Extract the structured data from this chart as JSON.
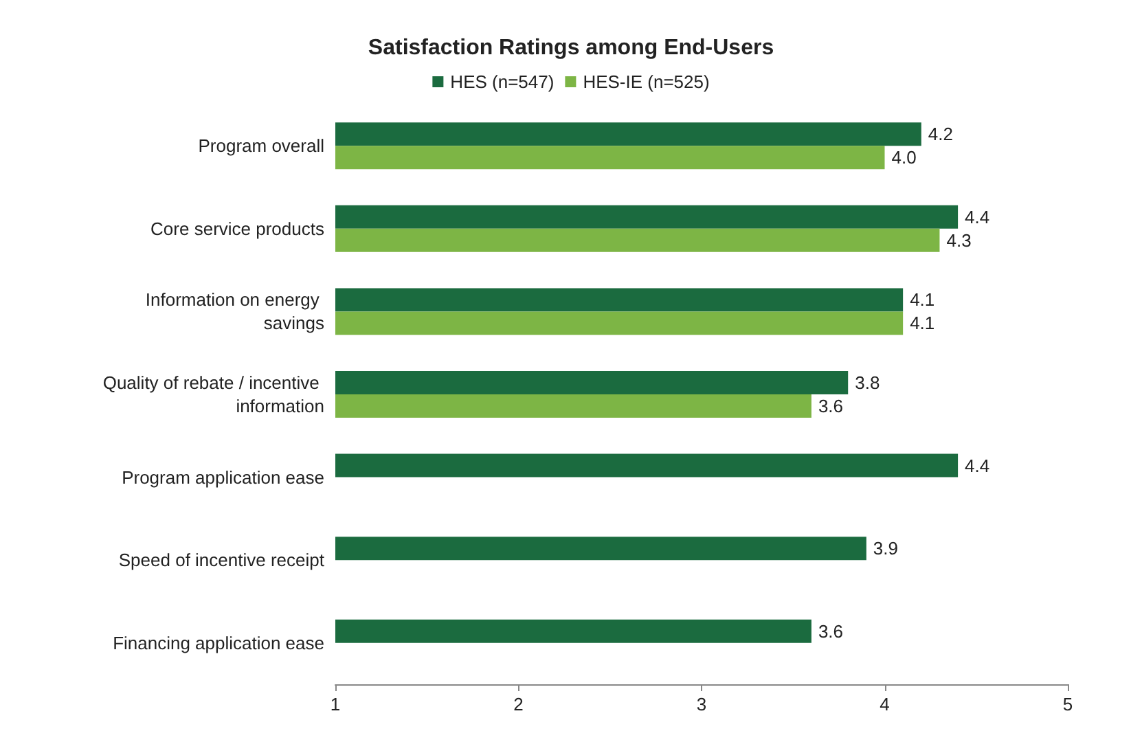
{
  "chart_data": {
    "type": "bar",
    "orientation": "horizontal",
    "title": "Satisfaction Ratings among End-Users",
    "categories": [
      "Program overall",
      "Core service products",
      "Information on energy savings",
      "Quality of rebate / incentive information",
      "Program application ease",
      "Speed of incentive receipt",
      "Financing application ease"
    ],
    "series": [
      {
        "name": "HES (n=547)",
        "color": "#1b6b3f",
        "values": [
          4.2,
          4.4,
          4.1,
          3.8,
          4.4,
          3.9,
          3.6
        ],
        "value_labels": [
          "4.2",
          "4.4",
          "4.1",
          "3.8",
          "4.4",
          "3.9",
          "3.6"
        ]
      },
      {
        "name": "HES-IE (n=525)",
        "color": "#7db545",
        "values": [
          4.0,
          4.3,
          4.1,
          3.6,
          null,
          null,
          null
        ],
        "value_labels": [
          "4.0",
          "4.3",
          "4.1",
          "3.6",
          null,
          null,
          null
        ]
      }
    ],
    "xlim": [
      1,
      5
    ],
    "xticks": [
      1,
      2,
      3,
      4,
      5
    ],
    "legend": "top",
    "grid": false
  }
}
